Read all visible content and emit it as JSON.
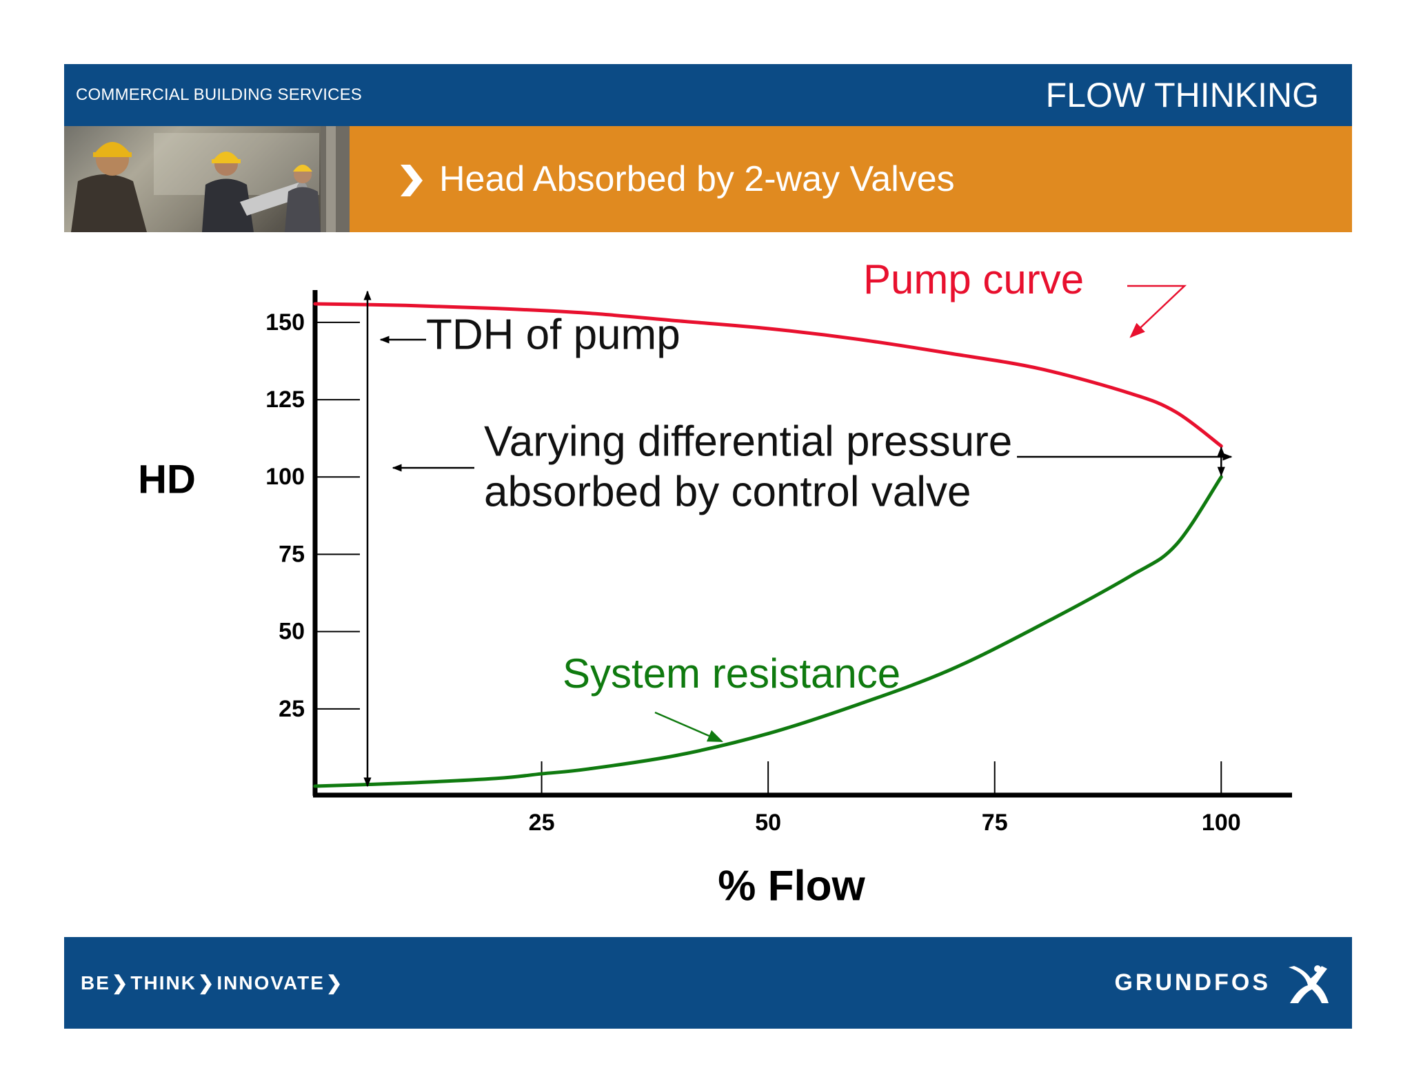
{
  "header": {
    "left_label": "COMMERCIAL BUILDING SERVICES",
    "right_label": "FLOW THINKING"
  },
  "slide": {
    "title": "Head Absorbed by 2-way Valves"
  },
  "chart_data": {
    "type": "line",
    "title": "",
    "xlabel": "% Flow",
    "ylabel": "HD",
    "xlim": [
      0,
      105
    ],
    "ylim": [
      0,
      160
    ],
    "x_ticks": [
      25,
      50,
      75,
      100
    ],
    "y_ticks": [
      25,
      50,
      75,
      100,
      125,
      150
    ],
    "grid": false,
    "series": [
      {
        "name": "Pump curve",
        "color": "#e8102e",
        "x": [
          0,
          10,
          20,
          30,
          40,
          50,
          60,
          70,
          80,
          90,
          95,
          100
        ],
        "y": [
          156,
          155.5,
          154.5,
          153,
          150.5,
          148,
          144.5,
          140,
          135,
          127,
          121,
          110
        ]
      },
      {
        "name": "System resistance",
        "color": "#0f7a0f",
        "x": [
          0,
          10,
          20,
          25,
          30,
          40,
          50,
          60,
          70,
          80,
          90,
          95,
          100
        ],
        "y": [
          0,
          1,
          2.5,
          4,
          5.5,
          10,
          17,
          26.5,
          37.5,
          52,
          68,
          78,
          100
        ]
      }
    ],
    "annotations": {
      "tdh": "TDH of pump",
      "varying_line1": "Varying differential pressure",
      "varying_line2": "absorbed by control valve",
      "pump_label": "Pump curve",
      "system_label": "System resistance"
    }
  },
  "footer": {
    "tagline_be": "BE",
    "tagline_think": "THINK",
    "tagline_innovate": "INNOVATE",
    "logo": "GRUNDFOS"
  }
}
